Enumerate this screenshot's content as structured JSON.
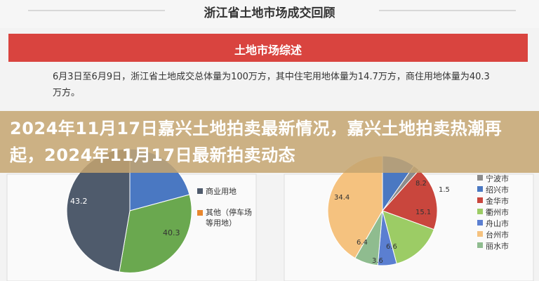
{
  "header": {
    "title": "浙江省土地市场成交回顾"
  },
  "banner": {
    "title": "土地市场综述"
  },
  "paragraph": "6月3日至6月9日，浙江省土地成交总体量为100万方，其中住宅用地体量为14.7万方，商住用地体量为40.3万方。",
  "overlay": {
    "title": "2024年11月17日嘉兴土地拍卖最新情况，嘉兴土地拍卖热潮再起，2024年11月17日最新拍卖动态"
  },
  "left_pie": {
    "labels": [
      "43.2",
      "40.3"
    ],
    "legend": [
      "商业用地",
      "其他（停车场等用地）"
    ]
  },
  "right_pie": {
    "labels": [
      "8.2",
      "1.5",
      "15.1",
      "6.6",
      "3.6",
      "6.4",
      "34.4"
    ],
    "legend": [
      "宁波市",
      "绍兴市",
      "金华市",
      "衢州市",
      "舟山市",
      "台州市",
      "丽水市"
    ]
  }
}
